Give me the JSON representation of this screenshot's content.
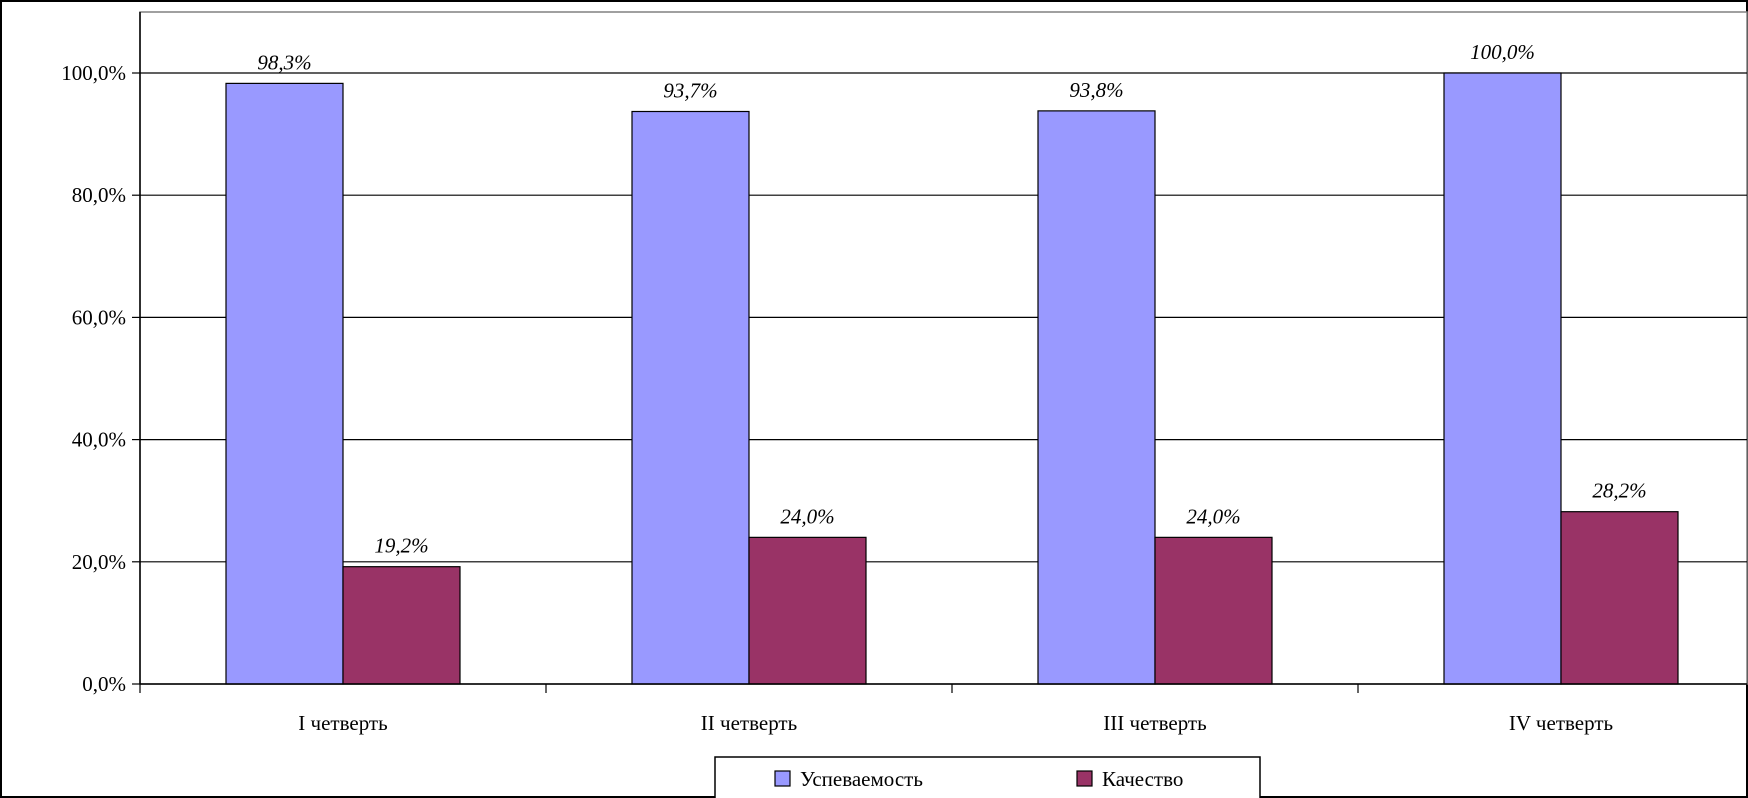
{
  "chart_data": {
    "type": "bar",
    "categories": [
      "I четверть",
      "II четверть",
      "III четверть",
      "IV четверть"
    ],
    "series": [
      {
        "name": "Успеваемость",
        "values": [
          98.3,
          93.7,
          93.8,
          100.0
        ],
        "labels": [
          "98,3%",
          "93,7%",
          "93,8%",
          "100,0%"
        ],
        "color": "#9999ff"
      },
      {
        "name": "Качество",
        "values": [
          19.2,
          24.0,
          24.0,
          28.2
        ],
        "labels": [
          "19,2%",
          "24,0%",
          "24,0%",
          "28,2%"
        ],
        "color": "#993366"
      }
    ],
    "y_ticks": [
      "0,0%",
      "20,0%",
      "40,0%",
      "60,0%",
      "80,0%",
      "100,0%"
    ],
    "ylim": [
      0,
      100
    ],
    "grid": true,
    "legend_position": "bottom"
  }
}
